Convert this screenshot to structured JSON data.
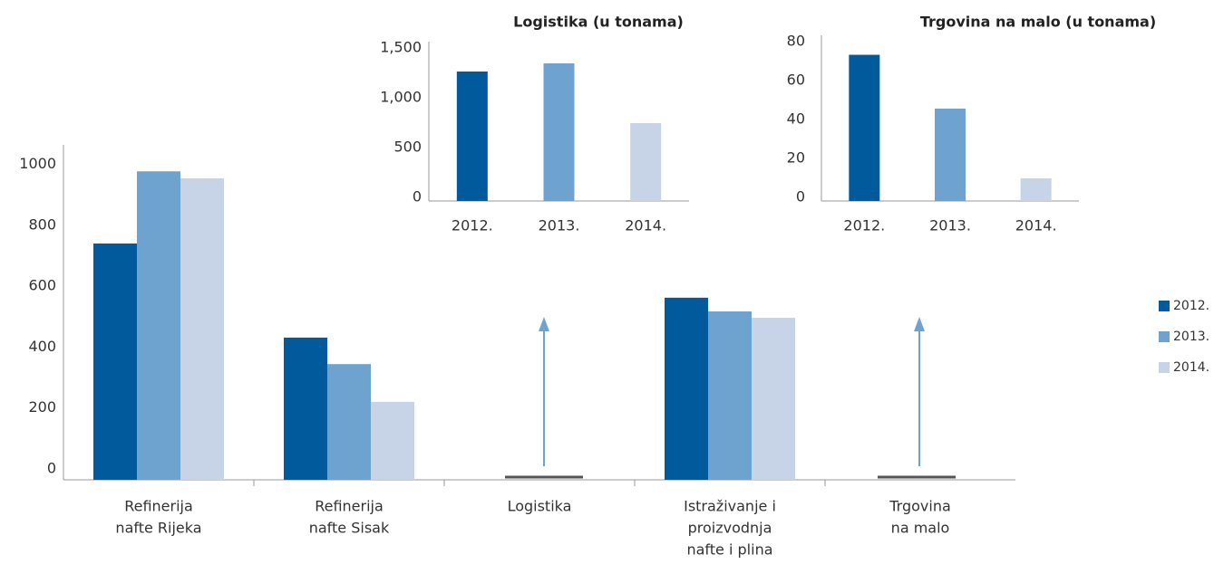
{
  "chart_data": [
    {
      "type": "bar",
      "categories": [
        [
          "Refinerija",
          "nafte Rijeka"
        ],
        [
          "Refinerija",
          "nafte Sisak"
        ],
        [
          "Logistika"
        ],
        [
          "Istraživanje i",
          "proizvodnja",
          "nafte i plina"
        ],
        [
          "Trgovina",
          "na malo"
        ]
      ],
      "series": [
        {
          "name": "2012.",
          "color": "#005a9c",
          "values": [
            776,
            467,
            null,
            598,
            null
          ]
        },
        {
          "name": "2013.",
          "color": "#6ea3d0",
          "values": [
            1013,
            380,
            null,
            553,
            null
          ]
        },
        {
          "name": "2014.",
          "color": "#c7d3e6",
          "values": [
            990,
            256,
            null,
            532,
            null
          ]
        }
      ],
      "ylim": [
        0,
        1100
      ],
      "yticks": [
        0,
        200,
        400,
        600,
        800,
        1000
      ],
      "legend": "right"
    },
    {
      "type": "bar",
      "title": "Logistika (u tonama)",
      "categories": [
        "2012.",
        "2013.",
        "2014."
      ],
      "values": [
        1300,
        1382,
        782
      ],
      "colors": [
        "#005a9c",
        "#6ea3d0",
        "#c7d3e6"
      ],
      "ylim": [
        0,
        1600
      ],
      "yticks": [
        0,
        500,
        {
          "value": 1000,
          "label": "1,000"
        },
        {
          "value": 1500,
          "label": "1,500"
        }
      ]
    },
    {
      "type": "bar",
      "title": "Trgovina na malo (u tonama)",
      "categories": [
        "2012.",
        "2013.",
        "2014."
      ],
      "values": [
        75,
        47.4,
        11.6
      ],
      "colors": [
        "#005a9c",
        "#6ea3d0",
        "#c7d3e6"
      ],
      "ylim": [
        0,
        85
      ],
      "yticks": [
        0,
        20,
        40,
        60,
        80
      ]
    }
  ]
}
